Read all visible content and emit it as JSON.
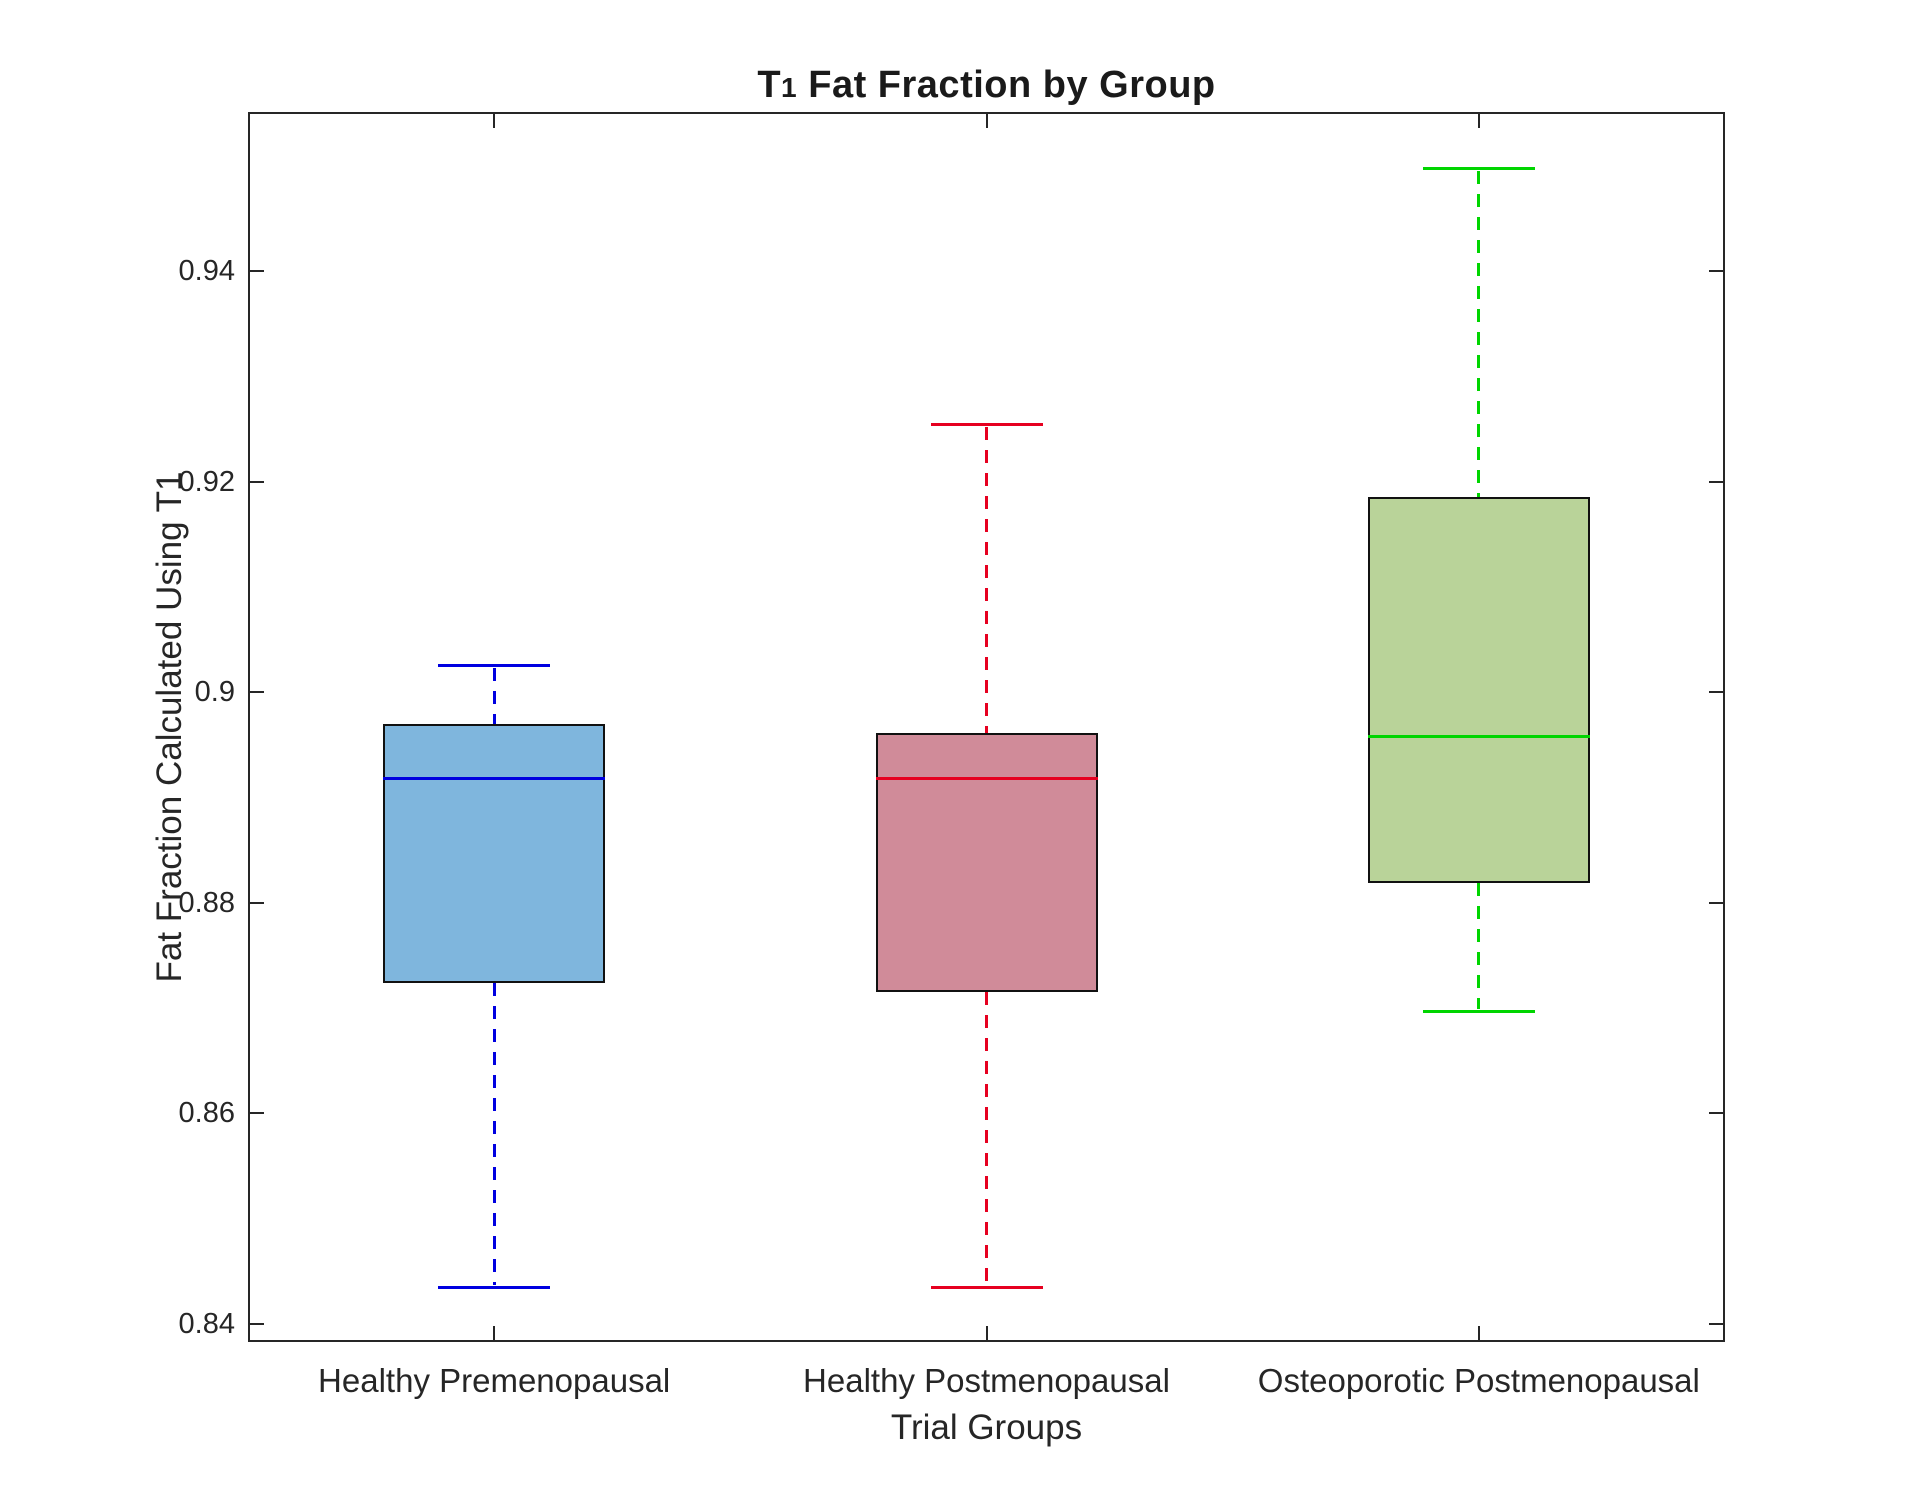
{
  "title": {
    "full": "T1 Fat Fraction by Group",
    "prefix": "T",
    "subscript": "1",
    "rest": " Fat Fraction by Group"
  },
  "axes": {
    "ylabel": "Fat Fraction Calculated Using T1",
    "xlabel": "Trial Groups"
  },
  "colors": {
    "background": "#ffffff",
    "axis_line": "#262626",
    "text": "#262626",
    "box_edge": "#111111"
  },
  "chart_data": {
    "type": "boxplot",
    "title": "T1 Fat Fraction by Group",
    "xlabel": "Trial Groups",
    "ylabel": "Fat Fraction Calculated Using T1",
    "categories": [
      "Healthy Premenopausal",
      "Healthy Postmenopausal",
      "Osteoporotic Postmenopausal"
    ],
    "ylim": [
      0.8383,
      0.9551
    ],
    "yticks": [
      0.84,
      0.86,
      0.88,
      0.9,
      0.92,
      0.94
    ],
    "ytick_labels": [
      "0.84",
      "0.86",
      "0.88",
      "0.9",
      "0.92",
      "0.94"
    ],
    "grid": false,
    "legend": null,
    "series": [
      {
        "name": "Healthy Premenopausal",
        "whisker_low": 0.8435,
        "q1": 0.8724,
        "median": 0.8918,
        "q3": 0.897,
        "whisker_high": 0.9025,
        "line_color": "#0000e0",
        "fill_color": "#7fb6dd"
      },
      {
        "name": "Healthy Postmenopausal",
        "whisker_low": 0.8435,
        "q1": 0.8715,
        "median": 0.8918,
        "q3": 0.8961,
        "whisker_high": 0.9254,
        "line_color": "#e60020",
        "fill_color": "#d08b99"
      },
      {
        "name": "Osteoporotic Postmenopausal",
        "whisker_low": 0.8697,
        "q1": 0.8819,
        "median": 0.8958,
        "q3": 0.9185,
        "whisker_high": 0.9497,
        "line_color": "#00d500",
        "fill_color": "#b9d399"
      }
    ]
  }
}
